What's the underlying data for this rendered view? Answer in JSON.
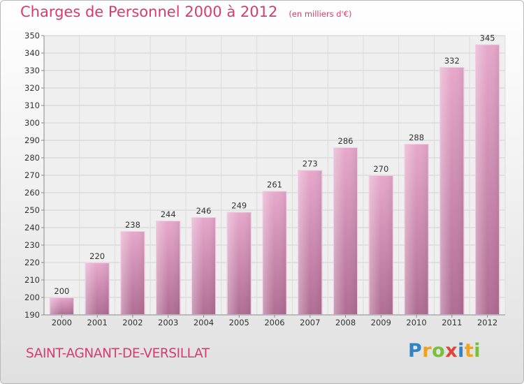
{
  "chart_data": {
    "type": "bar",
    "title": "Charges de Personnel 2000 à 2012",
    "subtitle": "(en milliers d'€)",
    "categories": [
      "2000",
      "2001",
      "2002",
      "2003",
      "2004",
      "2005",
      "2006",
      "2007",
      "2008",
      "2009",
      "2010",
      "2011",
      "2012"
    ],
    "values": [
      200,
      220,
      238,
      244,
      246,
      249,
      261,
      273,
      286,
      270,
      288,
      332,
      345
    ],
    "ylim": [
      190,
      350
    ],
    "yticks": [
      190,
      200,
      210,
      220,
      230,
      240,
      250,
      260,
      270,
      280,
      290,
      300,
      310,
      320,
      330,
      340,
      350
    ],
    "grid": true,
    "bar_color": "#d98bb7",
    "title_color": "#d93a73"
  },
  "commune": "SAINT-AGNANT-DE-VERSILLAT",
  "brand": {
    "letters": [
      "P",
      "r",
      "o",
      "x",
      "i",
      "t",
      "i"
    ],
    "colors": [
      "#2f84c4",
      "#f2a11e",
      "#7abf3a",
      "#e0453b",
      "#2f84c4",
      "#f2a11e",
      "#7abf3a"
    ]
  }
}
